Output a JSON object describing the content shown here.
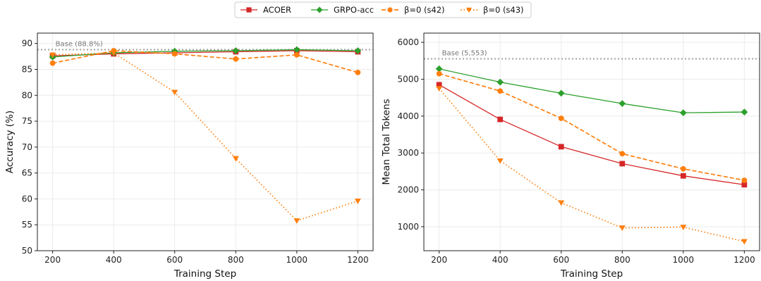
{
  "legend": {
    "entries": [
      {
        "name": "ACOER",
        "color": "#d62728",
        "dash": "solid",
        "marker": "square"
      },
      {
        "name": "GRPO-acc",
        "color": "#2ca02c",
        "dash": "solid",
        "marker": "diamond"
      },
      {
        "name": "β=0 (s42)",
        "color": "#ff7f0e",
        "dash": "dashed",
        "marker": "circle"
      },
      {
        "name": "β=0 (s43)",
        "color": "#ff7f0e",
        "dash": "dotted",
        "marker": "triangle-down"
      }
    ],
    "placement": "top-center"
  },
  "chart_data": [
    {
      "type": "line",
      "xlabel": "Training Step",
      "ylabel": "Accuracy (%)",
      "x": [
        200,
        400,
        600,
        800,
        1000,
        1200
      ],
      "xticks": [
        200,
        400,
        600,
        800,
        1000,
        1200
      ],
      "xlim": [
        150,
        1250
      ],
      "ylim": [
        50,
        92
      ],
      "yticks": [
        50,
        55,
        60,
        65,
        70,
        75,
        80,
        85,
        90
      ],
      "grid": true,
      "baseline": {
        "value": 88.8,
        "label": "Base (88.8%)"
      },
      "series": [
        {
          "name": "ACOER",
          "values": [
            87.6,
            88.0,
            88.2,
            88.4,
            88.6,
            88.4
          ]
        },
        {
          "name": "GRPO-acc",
          "values": [
            87.4,
            88.2,
            88.5,
            88.6,
            88.8,
            88.6
          ]
        },
        {
          "name": "β=0 (s42)",
          "values": [
            86.2,
            88.6,
            88.0,
            87.0,
            87.8,
            84.4
          ]
        },
        {
          "name": "β=0 (s43)",
          "values": [
            87.8,
            88.2,
            80.6,
            67.8,
            55.8,
            59.6
          ]
        }
      ]
    },
    {
      "type": "line",
      "xlabel": "Training Step",
      "ylabel": "Mean Total Tokens",
      "x": [
        200,
        400,
        600,
        800,
        1000,
        1200
      ],
      "xticks": [
        200,
        400,
        600,
        800,
        1000,
        1200
      ],
      "xlim": [
        150,
        1250
      ],
      "ylim": [
        350,
        6250
      ],
      "yticks": [
        1000,
        2000,
        3000,
        4000,
        5000,
        6000
      ],
      "grid": true,
      "baseline": {
        "value": 5553,
        "label": "Base (5,553)"
      },
      "series": [
        {
          "name": "ACOER",
          "values": [
            4850,
            3910,
            3170,
            2710,
            2380,
            2140
          ]
        },
        {
          "name": "GRPO-acc",
          "values": [
            5280,
            4920,
            4620,
            4340,
            4090,
            4110
          ]
        },
        {
          "name": "β=0 (s42)",
          "values": [
            5150,
            4680,
            3940,
            2980,
            2570,
            2260
          ]
        },
        {
          "name": "β=0 (s43)",
          "values": [
            4750,
            2790,
            1650,
            970,
            990,
            600
          ]
        }
      ]
    }
  ]
}
